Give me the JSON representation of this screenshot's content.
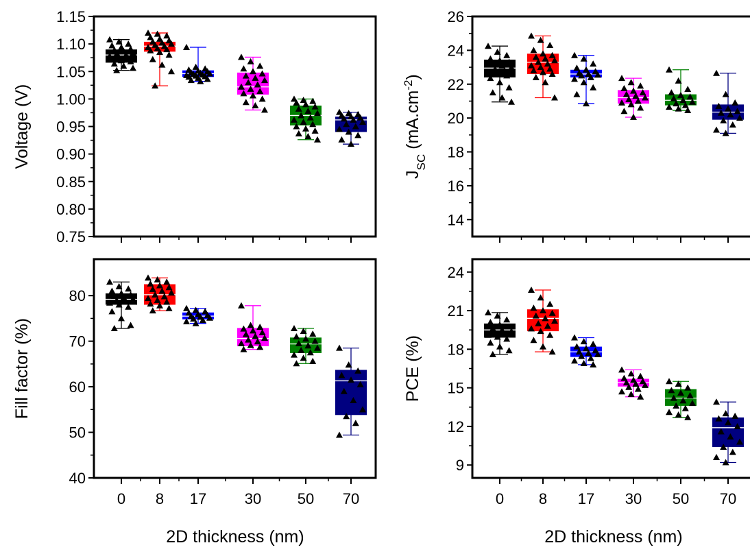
{
  "colors": {
    "0": "#000000",
    "8": "#ff0000",
    "17": "#0000ff",
    "30": "#ff00ff",
    "50": "#008000",
    "70": "#000080",
    "marker": "#000000",
    "median": "#ffffff"
  },
  "x_axis": {
    "label": "2D thickness (nm)",
    "categories": [
      "0",
      "8",
      "17",
      "30",
      "50",
      "70"
    ]
  },
  "chart_data": [
    {
      "type": "box",
      "ylabel": "Voltage (V)",
      "ylim": [
        0.75,
        1.15
      ],
      "yticks": [
        "0.75",
        "0.80",
        "0.85",
        "0.90",
        "0.95",
        "1.00",
        "1.05",
        "1.10",
        "1.15"
      ],
      "boxes": [
        {
          "category": "0",
          "min": 1.052,
          "q1": 1.066,
          "median": 1.08,
          "q3": 1.09,
          "max": 1.108,
          "points": [
            1.108,
            1.104,
            1.1,
            1.097,
            1.094,
            1.091,
            1.089,
            1.087,
            1.084,
            1.082,
            1.08,
            1.078,
            1.076,
            1.074,
            1.072,
            1.07,
            1.068,
            1.064,
            1.06,
            1.056,
            1.052
          ]
        },
        {
          "category": "8",
          "min": 1.024,
          "q1": 1.086,
          "median": 1.096,
          "q3": 1.104,
          "max": 1.12,
          "points": [
            1.12,
            1.118,
            1.115,
            1.112,
            1.109,
            1.106,
            1.104,
            1.102,
            1.1,
            1.098,
            1.096,
            1.094,
            1.092,
            1.09,
            1.088,
            1.085,
            1.08,
            1.072,
            1.062,
            1.05,
            1.024
          ]
        },
        {
          "category": "17",
          "min": 1.032,
          "q1": 1.04,
          "median": 1.046,
          "q3": 1.052,
          "max": 1.094,
          "points": [
            1.094,
            1.058,
            1.055,
            1.053,
            1.051,
            1.05,
            1.048,
            1.047,
            1.046,
            1.045,
            1.044,
            1.043,
            1.042,
            1.041,
            1.04,
            1.038,
            1.036,
            1.034,
            1.032
          ]
        },
        {
          "category": "30",
          "min": 0.98,
          "q1": 1.008,
          "median": 1.022,
          "q3": 1.048,
          "max": 1.076,
          "points": [
            1.076,
            1.068,
            1.06,
            1.055,
            1.05,
            1.046,
            1.042,
            1.038,
            1.034,
            1.03,
            1.026,
            1.022,
            1.018,
            1.014,
            1.01,
            1.006,
            1.0,
            0.994,
            0.988,
            0.98
          ]
        },
        {
          "category": "50",
          "min": 0.926,
          "q1": 0.952,
          "median": 0.97,
          "q3": 0.988,
          "max": 1.0,
          "points": [
            1.0,
            0.998,
            0.996,
            0.993,
            0.99,
            0.986,
            0.982,
            0.978,
            0.974,
            0.97,
            0.966,
            0.962,
            0.958,
            0.954,
            0.95,
            0.946,
            0.942,
            0.937,
            0.932,
            0.926
          ]
        },
        {
          "category": "70",
          "min": 0.918,
          "q1": 0.94,
          "median": 0.962,
          "q3": 0.968,
          "max": 0.976,
          "points": [
            0.976,
            0.974,
            0.972,
            0.97,
            0.968,
            0.966,
            0.964,
            0.962,
            0.958,
            0.954,
            0.95,
            0.945,
            0.94,
            0.934,
            0.926,
            0.918
          ]
        }
      ]
    },
    {
      "type": "box",
      "ylabel_main": "J",
      "ylabel_sub": "SC",
      "ylabel_rest": " (mA.cm",
      "ylabel_sup": "-2",
      "ylabel_end": ")",
      "ylim": [
        13,
        26
      ],
      "yticks": [
        "14",
        "16",
        "18",
        "20",
        "22",
        "24",
        "26"
      ],
      "ytick_values": [
        14,
        16,
        18,
        20,
        22,
        24,
        26
      ],
      "boxes": [
        {
          "category": "0",
          "min": 20.95,
          "q1": 22.4,
          "median": 22.95,
          "q3": 23.45,
          "max": 24.25,
          "points": [
            24.25,
            23.9,
            23.7,
            23.5,
            23.4,
            23.3,
            23.2,
            23.1,
            23.0,
            22.9,
            22.8,
            22.7,
            22.6,
            22.5,
            22.35,
            22.1,
            21.8,
            21.5,
            21.2,
            20.95
          ]
        },
        {
          "category": "8",
          "min": 21.2,
          "q1": 22.6,
          "median": 23.3,
          "q3": 23.8,
          "max": 24.85,
          "points": [
            24.85,
            24.6,
            24.3,
            24.0,
            23.8,
            23.7,
            23.6,
            23.5,
            23.4,
            23.3,
            23.2,
            23.1,
            23.0,
            22.9,
            22.8,
            22.7,
            22.6,
            22.4,
            22.1,
            21.2
          ]
        },
        {
          "category": "17",
          "min": 20.85,
          "q1": 22.4,
          "median": 22.6,
          "q3": 22.85,
          "max": 23.7,
          "points": [
            23.7,
            23.5,
            23.2,
            22.95,
            22.85,
            22.75,
            22.65,
            22.6,
            22.55,
            22.5,
            22.4,
            22.3,
            22.1,
            21.8,
            21.4,
            20.85
          ]
        },
        {
          "category": "30",
          "min": 20.05,
          "q1": 20.85,
          "median": 21.2,
          "q3": 21.65,
          "max": 22.35,
          "points": [
            22.35,
            22.1,
            21.9,
            21.75,
            21.6,
            21.5,
            21.4,
            21.3,
            21.2,
            21.1,
            21.0,
            20.9,
            20.8,
            20.6,
            20.4,
            20.05
          ]
        },
        {
          "category": "50",
          "min": 20.45,
          "q1": 20.75,
          "median": 21.05,
          "q3": 21.4,
          "max": 22.85,
          "points": [
            22.85,
            22.2,
            21.7,
            21.5,
            21.35,
            21.25,
            21.15,
            21.05,
            20.95,
            20.85,
            20.75,
            20.65,
            20.55,
            20.45
          ]
        },
        {
          "category": "70",
          "min": 19.1,
          "q1": 19.9,
          "median": 20.35,
          "q3": 20.8,
          "max": 22.65,
          "points": [
            22.65,
            21.4,
            20.9,
            20.7,
            20.55,
            20.4,
            20.3,
            20.2,
            20.0,
            19.85,
            19.6,
            19.3,
            19.1
          ]
        }
      ]
    },
    {
      "type": "box",
      "ylabel": "Fill factor (%)",
      "ylim": [
        40,
        88
      ],
      "yticks": [
        "40",
        "50",
        "60",
        "70",
        "80"
      ],
      "ytick_values": [
        40,
        50,
        60,
        70,
        80
      ],
      "boxes": [
        {
          "category": "0",
          "min": 72.8,
          "q1": 78.0,
          "median": 79.2,
          "q3": 80.5,
          "max": 83.0,
          "points": [
            83.0,
            82.0,
            81.5,
            81.0,
            80.5,
            80.2,
            79.9,
            79.6,
            79.3,
            79.0,
            78.7,
            78.4,
            78.0,
            77.5,
            76.5,
            75.0,
            73.5,
            72.8
          ]
        },
        {
          "category": "8",
          "min": 76.7,
          "q1": 78.0,
          "median": 80.2,
          "q3": 82.5,
          "max": 83.9,
          "points": [
            83.9,
            83.5,
            83.0,
            82.6,
            82.2,
            81.8,
            81.4,
            81.0,
            80.6,
            80.2,
            79.8,
            79.4,
            79.0,
            78.6,
            78.2,
            77.8,
            77.2,
            76.7
          ]
        },
        {
          "category": "17",
          "min": 73.9,
          "q1": 74.8,
          "median": 75.5,
          "q3": 76.3,
          "max": 77.2,
          "points": [
            77.2,
            76.8,
            76.5,
            76.2,
            75.9,
            75.7,
            75.5,
            75.3,
            75.1,
            74.9,
            74.6,
            74.3,
            73.9
          ]
        },
        {
          "category": "30",
          "min": 68.2,
          "q1": 68.9,
          "median": 70.6,
          "q3": 72.9,
          "max": 77.8,
          "points": [
            77.8,
            73.5,
            73.1,
            72.7,
            72.3,
            71.9,
            71.5,
            71.1,
            70.7,
            70.3,
            69.9,
            69.5,
            69.1,
            68.7,
            68.2
          ]
        },
        {
          "category": "50",
          "min": 65.1,
          "q1": 67.4,
          "median": 69.4,
          "q3": 70.8,
          "max": 72.8,
          "points": [
            72.8,
            72.2,
            71.6,
            71.0,
            70.5,
            70.0,
            69.5,
            69.0,
            68.5,
            68.0,
            67.5,
            67.0,
            66.3,
            65.6,
            65.1
          ]
        },
        {
          "category": "70",
          "min": 49.4,
          "q1": 53.8,
          "median": 61.3,
          "q3": 63.7,
          "max": 68.5,
          "points": [
            68.5,
            64.8,
            63.5,
            62.5,
            61.5,
            60.5,
            59.0,
            57.0,
            55.0,
            53.5,
            52.0,
            49.4
          ]
        }
      ]
    },
    {
      "type": "box",
      "ylabel": "PCE (%)",
      "ylim": [
        8,
        25
      ],
      "yticks": [
        "9",
        "12",
        "15",
        "18",
        "21",
        "24"
      ],
      "ytick_values": [
        9,
        12,
        15,
        18,
        21,
        24
      ],
      "boxes": [
        {
          "category": "0",
          "min": 17.6,
          "q1": 18.9,
          "median": 19.5,
          "q3": 20.0,
          "max": 20.85,
          "points": [
            20.85,
            20.6,
            20.3,
            20.1,
            19.9,
            19.75,
            19.6,
            19.5,
            19.4,
            19.3,
            19.2,
            19.1,
            18.95,
            18.8,
            18.5,
            18.2,
            17.9,
            17.6
          ]
        },
        {
          "category": "8",
          "min": 17.8,
          "q1": 19.4,
          "median": 20.4,
          "q3": 21.1,
          "max": 22.6,
          "points": [
            22.6,
            22.0,
            21.5,
            21.2,
            21.0,
            20.8,
            20.6,
            20.4,
            20.2,
            20.0,
            19.8,
            19.6,
            19.4,
            19.1,
            18.7,
            18.2,
            17.8
          ]
        },
        {
          "category": "17",
          "min": 16.8,
          "q1": 17.4,
          "median": 17.8,
          "q3": 18.2,
          "max": 18.9,
          "points": [
            18.9,
            18.6,
            18.4,
            18.2,
            18.05,
            17.9,
            17.8,
            17.7,
            17.6,
            17.45,
            17.3,
            17.1,
            16.9,
            16.8
          ]
        },
        {
          "category": "30",
          "min": 14.3,
          "q1": 15.1,
          "median": 15.4,
          "q3": 15.7,
          "max": 16.4,
          "points": [
            16.4,
            16.1,
            15.9,
            15.75,
            15.6,
            15.5,
            15.4,
            15.3,
            15.2,
            15.05,
            14.9,
            14.7,
            14.5,
            14.3
          ]
        },
        {
          "category": "50",
          "min": 12.7,
          "q1": 13.6,
          "median": 14.2,
          "q3": 14.9,
          "max": 15.5,
          "points": [
            15.5,
            15.3,
            15.0,
            14.8,
            14.6,
            14.4,
            14.2,
            14.0,
            13.8,
            13.6,
            13.4,
            13.1,
            12.9,
            12.7
          ]
        },
        {
          "category": "70",
          "min": 9.2,
          "q1": 10.4,
          "median": 11.9,
          "q3": 12.7,
          "max": 13.9,
          "points": [
            13.9,
            13.0,
            12.8,
            12.6,
            12.3,
            12.0,
            11.6,
            11.2,
            10.8,
            10.4,
            10.0,
            9.6,
            9.2
          ]
        }
      ]
    }
  ]
}
